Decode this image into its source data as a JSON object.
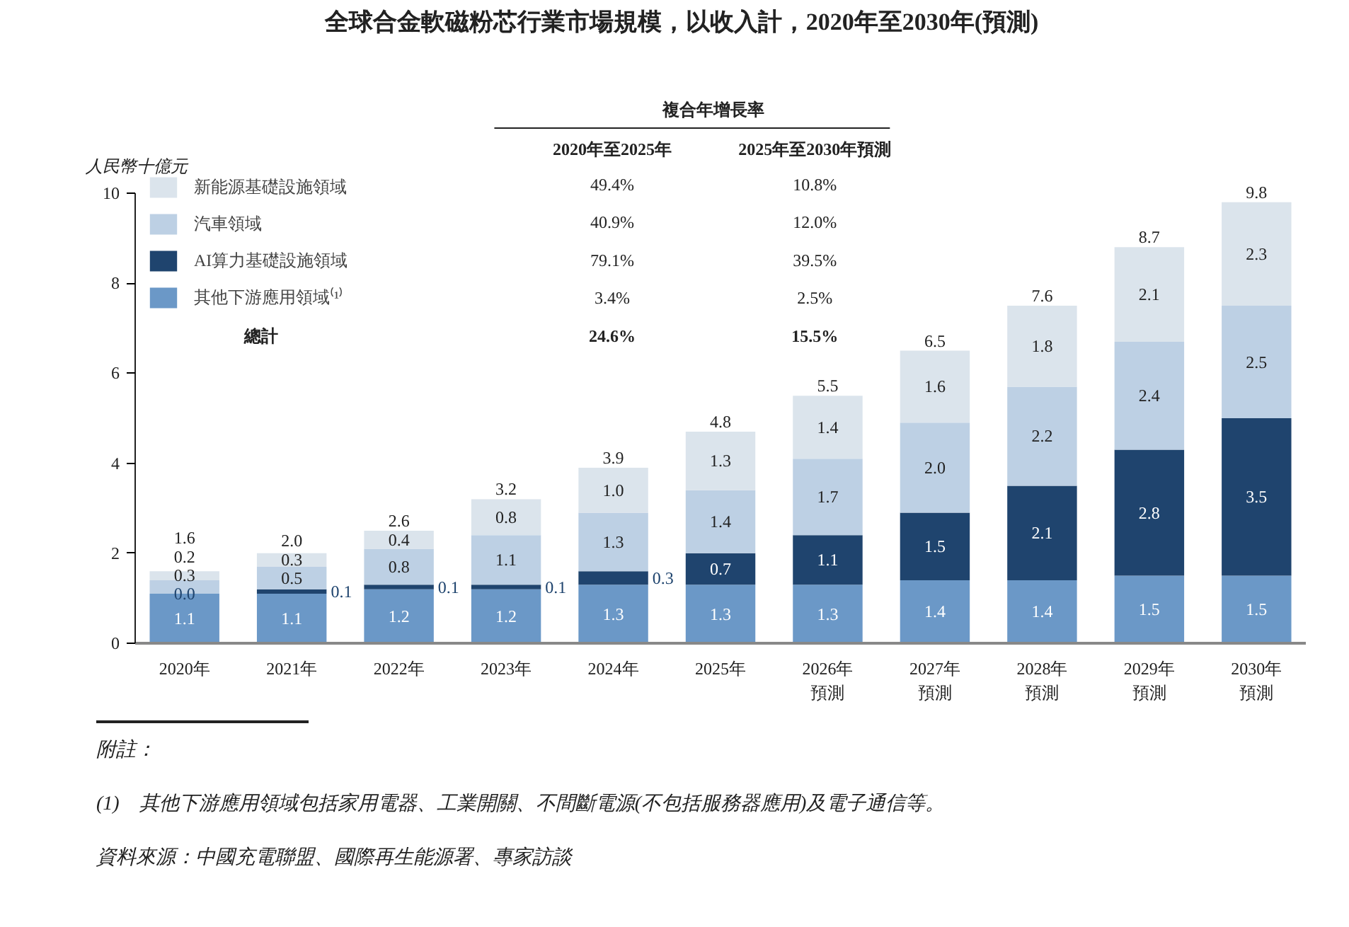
{
  "chart_data": {
    "type": "bar",
    "stacked": true,
    "title": "全球合金軟磁粉芯行業市場規模，以收入計，2020年至2030年(預測)",
    "ylabel": "人民幣十億元",
    "categories": [
      "2020年",
      "2021年",
      "2022年",
      "2023年",
      "2024年",
      "2025年",
      "2026年預測",
      "2027年預測",
      "2028年預測",
      "2029年預測",
      "2030年預測"
    ],
    "series": [
      {
        "name": "其他下游應用領域⁽¹⁾",
        "color": "#6b98c7",
        "values": [
          1.1,
          1.1,
          1.2,
          1.2,
          1.3,
          1.3,
          1.3,
          1.4,
          1.4,
          1.5,
          1.5
        ],
        "value_labels": [
          "1.1",
          "1.1",
          "1.2",
          "1.2",
          "1.3",
          "1.3",
          "1.3",
          "1.4",
          "1.4",
          "1.5",
          "1.5"
        ]
      },
      {
        "name": "AI算力基礎設施領域",
        "color": "#1f446e",
        "values": [
          0.0,
          0.1,
          0.1,
          0.1,
          0.3,
          0.7,
          1.1,
          1.5,
          2.1,
          2.8,
          3.5
        ],
        "value_labels": [
          "0.0",
          "0.1",
          "0.1",
          "0.1",
          "0.3",
          "0.7",
          "1.1",
          "1.5",
          "2.1",
          "2.8",
          "3.5"
        ]
      },
      {
        "name": "汽車領域",
        "color": "#bdd0e4",
        "values": [
          0.3,
          0.5,
          0.8,
          1.1,
          1.3,
          1.4,
          1.7,
          2.0,
          2.2,
          2.4,
          2.5
        ],
        "value_labels": [
          "0.3",
          "0.5",
          "0.8",
          "1.1",
          "1.3",
          "1.4",
          "1.7",
          "2.0",
          "2.2",
          "2.4",
          "2.5"
        ]
      },
      {
        "name": "新能源基礎設施領域",
        "color": "#dbe4ec",
        "values": [
          0.2,
          0.3,
          0.4,
          0.8,
          1.0,
          1.3,
          1.4,
          1.6,
          1.8,
          2.1,
          2.3
        ],
        "value_labels": [
          "0.2",
          "0.3",
          "0.4",
          "0.8",
          "1.0",
          "1.3",
          "1.4",
          "1.6",
          "1.8",
          "2.1",
          "2.3"
        ]
      }
    ],
    "totals": [
      "1.6",
      "2.0",
      "2.6",
      "3.2",
      "3.9",
      "4.8",
      "5.5",
      "6.5",
      "7.6",
      "8.7",
      "9.8"
    ],
    "data_labels": true,
    "ylim": [
      0,
      10
    ],
    "yticks": [
      0,
      2,
      4,
      6,
      8,
      10
    ],
    "grid": false,
    "legend": "top left",
    "annotations": [
      "複合年增長率",
      "2020年至2025年",
      "2025年至2030年預測",
      "49.4%",
      "10.8%",
      "40.9%",
      "12.0%",
      "79.1%",
      "39.5%",
      "3.4%",
      "2.5%",
      "總計",
      "24.6%",
      "15.5%",
      "附註：",
      "(1)　其他下游應用領域包括家用電器、工業開關、不間斷電源(不包括服務器應用)及電子通信等。",
      "資料來源：中國充電聯盟、國際再生能源署、專家訪談"
    ]
  }
}
